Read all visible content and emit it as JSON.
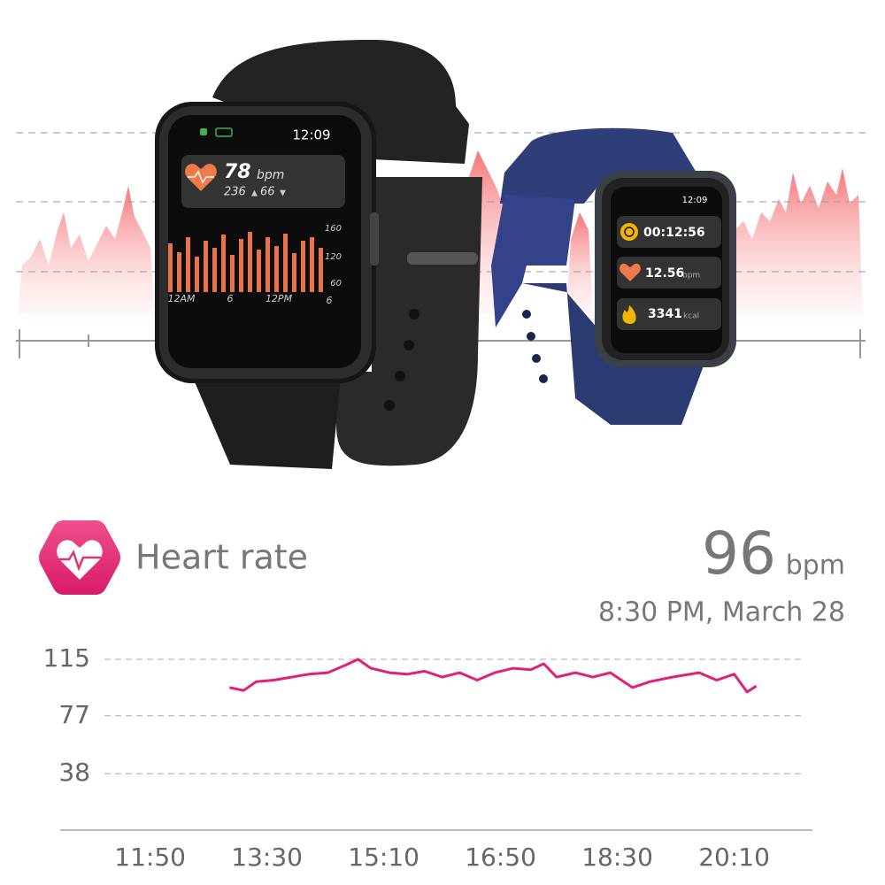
{
  "watch_large": {
    "time": "12:09",
    "heart_rate": "78",
    "heart_unit": "bpm",
    "max": "236",
    "min": "66",
    "chart_yticks": [
      "160",
      "120",
      "60"
    ],
    "chart_xticks": [
      "12AM",
      "6",
      "12PM",
      "6"
    ]
  },
  "watch_small": {
    "time": "12:09",
    "timer": "00:12:56",
    "heart": "12.56",
    "heart_unit": "bpm",
    "calories": "3341",
    "calorie_unit": "kcal"
  },
  "heart_rate": {
    "title": "Heart rate",
    "value": "96",
    "unit": "bpm",
    "timestamp": "8:30 PM, March 28"
  },
  "chart_data": {
    "type": "line",
    "color": "#e0207a",
    "x": [
      778,
      790,
      801,
      816,
      831,
      846,
      862,
      877,
      888,
      899,
      915,
      930,
      945,
      960,
      975,
      990,
      1005,
      1021,
      1036,
      1047,
      1058,
      1074,
      1089,
      1104,
      1123,
      1138,
      1157,
      1180,
      1195,
      1210,
      1221,
      1229
    ],
    "values": [
      96,
      94,
      100,
      101,
      103,
      105,
      106,
      111,
      115,
      109,
      106,
      105,
      107,
      103,
      106,
      101,
      106,
      109,
      108,
      112,
      103,
      106,
      103,
      106,
      96,
      100,
      103,
      106,
      101,
      105,
      93,
      97
    ],
    "xlim": [
      633,
      1277
    ],
    "xticks": [
      {
        "value": 710,
        "label": "11:50"
      },
      {
        "value": 810,
        "label": "13:30"
      },
      {
        "value": 910,
        "label": "15:10"
      },
      {
        "value": 1010,
        "label": "16:50"
      },
      {
        "value": 1110,
        "label": "18:30"
      },
      {
        "value": 1210,
        "label": "20:10"
      }
    ],
    "ylim": [
      0,
      115
    ],
    "yticks": [
      38,
      77,
      115
    ],
    "grid": true
  }
}
